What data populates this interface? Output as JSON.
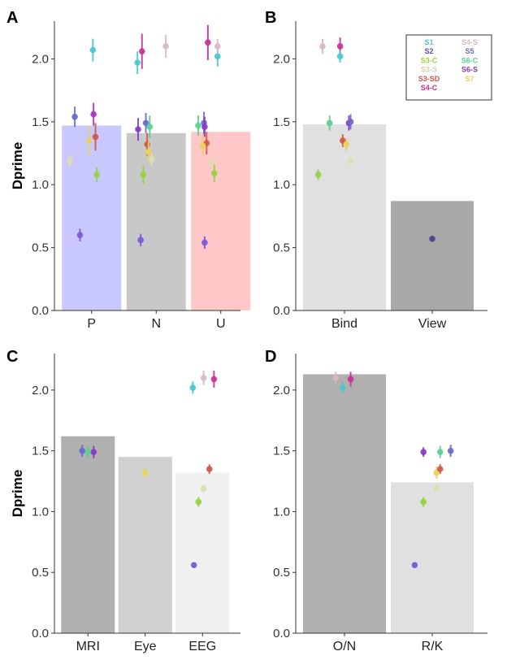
{
  "chart_data": [
    {
      "panel": "A",
      "type": "bar",
      "ylabel": "Dprime",
      "ylim": [
        0,
        2.3
      ],
      "yticks": [
        "0.0",
        "0.5",
        "1.0",
        "1.5",
        "2.0"
      ],
      "categories": [
        "P",
        "N",
        "U"
      ],
      "values": [
        1.47,
        1.41,
        1.42
      ],
      "bar_colors": [
        "#c8c8ff",
        "#c8c8c8",
        "#ffc8c8"
      ],
      "points": [
        {
          "cat": 0,
          "off": -0.26,
          "y": 1.54,
          "err": 0.08,
          "color": "#6a6ac8"
        },
        {
          "cat": 0,
          "off": -0.18,
          "y": 0.6,
          "err": 0.05,
          "color": "#7a58d8"
        },
        {
          "cat": 0,
          "off": -0.34,
          "y": 1.19,
          "err": 0.05,
          "color": "#e0dcb0"
        },
        {
          "cat": 0,
          "off": -0.04,
          "y": 1.35,
          "err": 0.12,
          "color": "#e8d25a"
        },
        {
          "cat": 0,
          "off": 0.03,
          "y": 1.56,
          "err": 0.09,
          "color": "#b030c8"
        },
        {
          "cat": 0,
          "off": 0.06,
          "y": 1.38,
          "err": 0.11,
          "color": "#d05848"
        },
        {
          "cat": 0,
          "off": 0.08,
          "y": 1.08,
          "err": 0.06,
          "color": "#98d040"
        },
        {
          "cat": 0,
          "off": 0.02,
          "y": 2.07,
          "err": 0.09,
          "color": "#48c8d0"
        },
        {
          "cat": 1,
          "off": -0.29,
          "y": 1.97,
          "err": 0.09,
          "color": "#48c8d0"
        },
        {
          "cat": 1,
          "off": -0.22,
          "y": 2.06,
          "err": 0.14,
          "color": "#c83098"
        },
        {
          "cat": 1,
          "off": -0.28,
          "y": 1.44,
          "err": 0.09,
          "color": "#8a38c8"
        },
        {
          "cat": 1,
          "off": -0.24,
          "y": 0.56,
          "err": 0.05,
          "color": "#7a58d8"
        },
        {
          "cat": 1,
          "off": -0.2,
          "y": 1.08,
          "err": 0.07,
          "color": "#98d040"
        },
        {
          "cat": 1,
          "off": -0.16,
          "y": 1.49,
          "err": 0.08,
          "color": "#6a6ac8"
        },
        {
          "cat": 1,
          "off": -0.1,
          "y": 1.46,
          "err": 0.09,
          "color": "#58d090"
        },
        {
          "cat": 1,
          "off": -0.14,
          "y": 1.32,
          "err": 0.09,
          "color": "#d05848"
        },
        {
          "cat": 1,
          "off": -0.12,
          "y": 1.26,
          "err": 0.08,
          "color": "#e8d25a"
        },
        {
          "cat": 1,
          "off": -0.07,
          "y": 1.2,
          "err": 0.05,
          "color": "#e0dcb0"
        },
        {
          "cat": 1,
          "off": 0.15,
          "y": 2.1,
          "err": 0.09,
          "color": "#d8b8c8"
        },
        {
          "cat": 2,
          "off": -0.35,
          "y": 1.47,
          "err": 0.08,
          "color": "#58d090"
        },
        {
          "cat": 2,
          "off": -0.26,
          "y": 1.49,
          "err": 0.09,
          "color": "#6a6ac8"
        },
        {
          "cat": 2,
          "off": -0.25,
          "y": 1.46,
          "err": 0.08,
          "color": "#8a38c8"
        },
        {
          "cat": 2,
          "off": -0.2,
          "y": 2.13,
          "err": 0.14,
          "color": "#c83098"
        },
        {
          "cat": 2,
          "off": -0.22,
          "y": 1.33,
          "err": 0.09,
          "color": "#d05848"
        },
        {
          "cat": 2,
          "off": -0.28,
          "y": 1.31,
          "err": 0.08,
          "color": "#e8d25a"
        },
        {
          "cat": 2,
          "off": -0.15,
          "y": 1.17,
          "err": 0.05,
          "color": "#e0dcb0"
        },
        {
          "cat": 2,
          "off": -0.25,
          "y": 0.54,
          "err": 0.05,
          "color": "#7a58d8"
        },
        {
          "cat": 2,
          "off": -0.1,
          "y": 1.09,
          "err": 0.07,
          "color": "#98d040"
        },
        {
          "cat": 2,
          "off": -0.05,
          "y": 2.02,
          "err": 0.08,
          "color": "#48c8d0"
        },
        {
          "cat": 2,
          "off": -0.05,
          "y": 2.1,
          "err": 0.06,
          "color": "#d8b8c8"
        }
      ]
    },
    {
      "panel": "B",
      "type": "bar",
      "ylabel": "",
      "ylim": [
        0,
        2.3
      ],
      "yticks": [
        "0.0",
        "0.5",
        "1.0",
        "1.5",
        "2.0"
      ],
      "categories": [
        "Bind",
        "View"
      ],
      "values": [
        1.48,
        0.87
      ],
      "bar_colors": [
        "#e0e0e0",
        "#a8a8a8"
      ],
      "points": [
        {
          "cat": 0,
          "off": -0.25,
          "y": 2.1,
          "err": 0.06,
          "color": "#d8b8c8"
        },
        {
          "cat": 0,
          "off": -0.05,
          "y": 2.1,
          "err": 0.07,
          "color": "#c83098"
        },
        {
          "cat": 0,
          "off": -0.05,
          "y": 2.02,
          "err": 0.05,
          "color": "#48c8d0"
        },
        {
          "cat": 0,
          "off": -0.17,
          "y": 1.49,
          "err": 0.06,
          "color": "#58d090"
        },
        {
          "cat": 0,
          "off": 0.05,
          "y": 1.49,
          "err": 0.06,
          "color": "#8a38c8"
        },
        {
          "cat": 0,
          "off": 0.07,
          "y": 1.5,
          "err": 0.06,
          "color": "#6a6ac8"
        },
        {
          "cat": 0,
          "off": -0.02,
          "y": 1.35,
          "err": 0.05,
          "color": "#d05848"
        },
        {
          "cat": 0,
          "off": 0.02,
          "y": 1.32,
          "err": 0.05,
          "color": "#e8d25a"
        },
        {
          "cat": 0,
          "off": 0.07,
          "y": 1.19,
          "err": 0.03,
          "color": "#e0dcb0"
        },
        {
          "cat": 0,
          "off": -0.3,
          "y": 1.08,
          "err": 0.04,
          "color": "#98d040"
        },
        {
          "cat": 1,
          "off": 0.0,
          "y": 0.57,
          "err": 0.02,
          "color": "#50408a"
        }
      ],
      "legend": {
        "placement": "top-right",
        "entries": [
          {
            "label": "S1",
            "color": "#48c8d0"
          },
          {
            "label": "S4-S",
            "color": "#d8b8c8"
          },
          {
            "label": "S2",
            "color": "#5a4ab8"
          },
          {
            "label": "S5",
            "color": "#6a6ac8"
          },
          {
            "label": "S3-C",
            "color": "#98d040"
          },
          {
            "label": "S6-C",
            "color": "#58d090"
          },
          {
            "label": "S3-S",
            "color": "#d8d0a8"
          },
          {
            "label": "S6-S",
            "color": "#8a38c8"
          },
          {
            "label": "S3-SD",
            "color": "#d05848"
          },
          {
            "label": "S7",
            "color": "#e8d25a"
          },
          {
            "label": "S4-C",
            "color": "#c83098"
          }
        ]
      }
    },
    {
      "panel": "C",
      "type": "bar",
      "ylabel": "Dprime",
      "ylim": [
        0,
        2.3
      ],
      "yticks": [
        "0.0",
        "0.5",
        "1.0",
        "1.5",
        "2.0"
      ],
      "categories": [
        "MRI",
        "Eye",
        "EEG"
      ],
      "values": [
        1.62,
        1.45,
        1.32
      ],
      "bar_colors": [
        "#b0b0b0",
        "#d0d0d0",
        "#f0f0f0"
      ],
      "points": [
        {
          "cat": 0,
          "off": -0.1,
          "y": 1.5,
          "err": 0.05,
          "color": "#6a6ac8"
        },
        {
          "cat": 0,
          "off": 0.0,
          "y": 1.49,
          "err": 0.05,
          "color": "#58d090"
        },
        {
          "cat": 0,
          "off": 0.1,
          "y": 1.49,
          "err": 0.05,
          "color": "#8a38c8"
        },
        {
          "cat": 1,
          "off": 0.0,
          "y": 1.32,
          "err": 0.04,
          "color": "#e8d25a"
        },
        {
          "cat": 2,
          "off": -0.17,
          "y": 2.02,
          "err": 0.05,
          "color": "#48c8d0"
        },
        {
          "cat": 2,
          "off": 0.02,
          "y": 2.1,
          "err": 0.06,
          "color": "#d8b8c8"
        },
        {
          "cat": 2,
          "off": 0.2,
          "y": 2.09,
          "err": 0.07,
          "color": "#c83098"
        },
        {
          "cat": 2,
          "off": 0.12,
          "y": 1.35,
          "err": 0.04,
          "color": "#d05848"
        },
        {
          "cat": 2,
          "off": 0.02,
          "y": 1.19,
          "err": 0.03,
          "color": "#e0dcb0"
        },
        {
          "cat": 2,
          "off": -0.07,
          "y": 1.08,
          "err": 0.04,
          "color": "#98d040"
        },
        {
          "cat": 2,
          "off": -0.15,
          "y": 0.56,
          "err": 0.02,
          "color": "#7a58d8"
        }
      ]
    },
    {
      "panel": "D",
      "type": "bar",
      "ylabel": "",
      "ylim": [
        0,
        2.3
      ],
      "yticks": [
        "0.0",
        "0.5",
        "1.0",
        "1.5",
        "2.0"
      ],
      "categories": [
        "O/N",
        "R/K"
      ],
      "values": [
        2.13,
        1.24
      ],
      "bar_colors": [
        "#b0b0b0",
        "#e0e0e0"
      ],
      "points": [
        {
          "cat": 0,
          "off": -0.1,
          "y": 2.1,
          "err": 0.05,
          "color": "#d8b8c8"
        },
        {
          "cat": 0,
          "off": -0.02,
          "y": 2.02,
          "err": 0.04,
          "color": "#48c8d0"
        },
        {
          "cat": 0,
          "off": 0.07,
          "y": 2.09,
          "err": 0.06,
          "color": "#c83098"
        },
        {
          "cat": 1,
          "off": -0.1,
          "y": 1.49,
          "err": 0.04,
          "color": "#8a38c8"
        },
        {
          "cat": 1,
          "off": 0.09,
          "y": 1.49,
          "err": 0.05,
          "color": "#58d090"
        },
        {
          "cat": 1,
          "off": 0.21,
          "y": 1.5,
          "err": 0.05,
          "color": "#6a6ac8"
        },
        {
          "cat": 1,
          "off": 0.05,
          "y": 1.32,
          "err": 0.05,
          "color": "#e8d25a"
        },
        {
          "cat": 1,
          "off": 0.09,
          "y": 1.35,
          "err": 0.04,
          "color": "#d05848"
        },
        {
          "cat": 1,
          "off": 0.05,
          "y": 1.19,
          "err": 0.03,
          "color": "#e0dcb0"
        },
        {
          "cat": 1,
          "off": -0.1,
          "y": 1.08,
          "err": 0.04,
          "color": "#98d040"
        },
        {
          "cat": 1,
          "off": -0.2,
          "y": 0.56,
          "err": 0.02,
          "color": "#7a58d8"
        }
      ]
    }
  ]
}
